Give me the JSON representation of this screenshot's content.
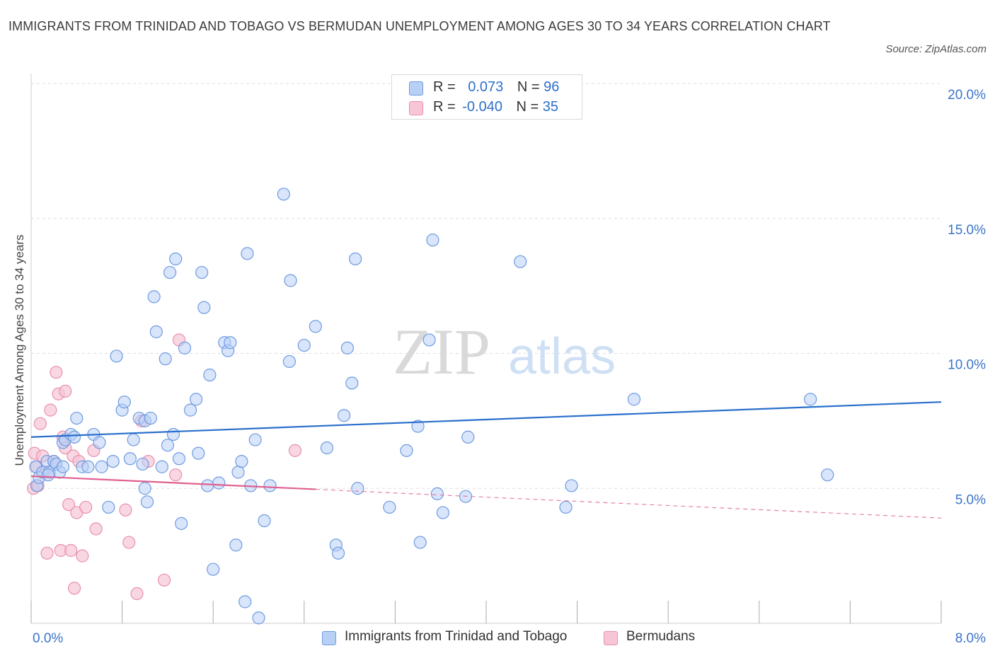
{
  "title": "IMMIGRANTS FROM TRINIDAD AND TOBAGO VS BERMUDAN UNEMPLOYMENT AMONG AGES 30 TO 34 YEARS CORRELATION CHART",
  "source": "Source: ZipAtlas.com",
  "watermark": {
    "zip": "ZIP",
    "atlas": "atlas"
  },
  "colors": {
    "blue_fill": "#b8d0f5",
    "blue_stroke": "#6f9be0",
    "blue_line": "#2a6fcc",
    "pink_fill": "#f7c6d6",
    "pink_stroke": "#e890ad",
    "pink_line": "#e06090",
    "axis_text": "#3a74c9",
    "grid": "#dddddd"
  },
  "legend": {
    "series1": {
      "r_label": "R =",
      "r_value": " 0.073",
      "n_label": "N =",
      "n_value": "96"
    },
    "series2": {
      "r_label": "R =",
      "r_value": "-0.040",
      "n_label": "N =",
      "n_value": "35"
    }
  },
  "chart_data": {
    "type": "scatter",
    "title": "IMMIGRANTS FROM TRINIDAD AND TOBAGO VS BERMUDAN UNEMPLOYMENT AMONG AGES 30 TO 34 YEARS CORRELATION CHART",
    "xlabel": "",
    "ylabel": "Unemployment Among Ages 30 to 34 years",
    "xlim": [
      0,
      8
    ],
    "ylim": [
      0,
      20
    ],
    "x_tick_labels": [
      "0.0%",
      "8.0%"
    ],
    "y_ticks": [
      5,
      10,
      15,
      20
    ],
    "y_tick_labels": [
      "5.0%",
      "10.0%",
      "15.0%",
      "20.0%"
    ],
    "grid": true,
    "legend_position": "top-center",
    "series": [
      {
        "name": "Immigrants from Trinidad and Tobago",
        "trend": {
          "x": [
            0,
            8
          ],
          "y": [
            6.9,
            8.2
          ],
          "solid_until": 8
        },
        "points": [
          [
            0.04,
            5.8
          ],
          [
            0.05,
            5.1
          ],
          [
            0.07,
            5.4
          ],
          [
            0.1,
            5.6
          ],
          [
            0.14,
            6.0
          ],
          [
            0.16,
            5.6
          ],
          [
            0.2,
            6.0
          ],
          [
            0.22,
            5.9
          ],
          [
            0.25,
            5.6
          ],
          [
            0.28,
            5.8
          ],
          [
            0.28,
            6.7
          ],
          [
            0.3,
            6.8
          ],
          [
            0.35,
            7.0
          ],
          [
            0.38,
            6.9
          ],
          [
            0.4,
            7.6
          ],
          [
            0.45,
            5.8
          ],
          [
            0.5,
            5.8
          ],
          [
            0.55,
            7.0
          ],
          [
            0.6,
            6.7
          ],
          [
            0.62,
            5.8
          ],
          [
            0.68,
            4.3
          ],
          [
            0.72,
            6.0
          ],
          [
            0.75,
            9.9
          ],
          [
            0.8,
            7.9
          ],
          [
            0.82,
            8.2
          ],
          [
            0.87,
            6.1
          ],
          [
            0.9,
            6.8
          ],
          [
            0.95,
            7.6
          ],
          [
            0.98,
            5.9
          ],
          [
            1.0,
            7.5
          ],
          [
            1.0,
            5.0
          ],
          [
            1.02,
            4.5
          ],
          [
            1.05,
            7.6
          ],
          [
            1.08,
            12.1
          ],
          [
            1.1,
            10.8
          ],
          [
            1.15,
            5.8
          ],
          [
            1.18,
            9.8
          ],
          [
            1.2,
            6.6
          ],
          [
            1.22,
            13.0
          ],
          [
            1.25,
            7.0
          ],
          [
            1.27,
            13.5
          ],
          [
            1.3,
            6.1
          ],
          [
            1.32,
            3.7
          ],
          [
            1.35,
            10.2
          ],
          [
            1.4,
            7.9
          ],
          [
            1.45,
            8.3
          ],
          [
            1.47,
            6.3
          ],
          [
            1.5,
            13.0
          ],
          [
            1.52,
            11.7
          ],
          [
            1.55,
            5.1
          ],
          [
            1.57,
            9.2
          ],
          [
            1.6,
            2.0
          ],
          [
            1.65,
            5.2
          ],
          [
            1.7,
            10.4
          ],
          [
            1.73,
            10.1
          ],
          [
            1.75,
            10.4
          ],
          [
            1.8,
            2.9
          ],
          [
            1.82,
            5.6
          ],
          [
            1.85,
            6.0
          ],
          [
            1.88,
            0.8
          ],
          [
            1.9,
            13.7
          ],
          [
            1.93,
            5.1
          ],
          [
            1.97,
            6.8
          ],
          [
            2.0,
            0.2
          ],
          [
            2.05,
            3.8
          ],
          [
            2.1,
            5.1
          ],
          [
            2.22,
            15.9
          ],
          [
            2.27,
            9.7
          ],
          [
            2.28,
            12.7
          ],
          [
            2.4,
            10.3
          ],
          [
            2.5,
            11.0
          ],
          [
            2.6,
            6.5
          ],
          [
            2.68,
            2.9
          ],
          [
            2.7,
            2.6
          ],
          [
            2.75,
            7.7
          ],
          [
            2.78,
            10.2
          ],
          [
            2.82,
            8.9
          ],
          [
            2.85,
            13.5
          ],
          [
            2.87,
            5.0
          ],
          [
            3.15,
            4.3
          ],
          [
            3.3,
            6.4
          ],
          [
            3.4,
            7.3
          ],
          [
            3.42,
            3.0
          ],
          [
            3.53,
            14.2
          ],
          [
            3.57,
            4.8
          ],
          [
            3.62,
            4.1
          ],
          [
            3.82,
            4.7
          ],
          [
            3.84,
            6.9
          ],
          [
            4.3,
            13.4
          ],
          [
            4.7,
            4.3
          ],
          [
            4.75,
            5.1
          ],
          [
            5.3,
            8.3
          ],
          [
            6.85,
            8.3
          ],
          [
            7.0,
            5.5
          ],
          [
            3.5,
            10.5
          ],
          [
            0.15,
            5.5
          ]
        ]
      },
      {
        "name": "Bermudans",
        "trend": {
          "x": [
            0,
            8
          ],
          "y": [
            5.45,
            3.9
          ],
          "solid_until": 2.5
        },
        "points": [
          [
            0.02,
            5.0
          ],
          [
            0.03,
            6.3
          ],
          [
            0.05,
            5.8
          ],
          [
            0.08,
            7.4
          ],
          [
            0.1,
            6.2
          ],
          [
            0.12,
            5.6
          ],
          [
            0.14,
            2.6
          ],
          [
            0.17,
            7.9
          ],
          [
            0.2,
            6.0
          ],
          [
            0.22,
            9.3
          ],
          [
            0.24,
            8.5
          ],
          [
            0.26,
            2.7
          ],
          [
            0.28,
            6.9
          ],
          [
            0.3,
            6.5
          ],
          [
            0.3,
            8.6
          ],
          [
            0.33,
            4.4
          ],
          [
            0.35,
            2.7
          ],
          [
            0.37,
            6.2
          ],
          [
            0.38,
            1.3
          ],
          [
            0.4,
            4.1
          ],
          [
            0.42,
            6.0
          ],
          [
            0.45,
            2.5
          ],
          [
            0.48,
            4.3
          ],
          [
            0.55,
            6.4
          ],
          [
            0.57,
            3.5
          ],
          [
            0.83,
            4.2
          ],
          [
            0.86,
            3.0
          ],
          [
            0.93,
            1.1
          ],
          [
            0.97,
            7.5
          ],
          [
            1.03,
            6.0
          ],
          [
            1.17,
            1.6
          ],
          [
            1.27,
            5.5
          ],
          [
            1.3,
            10.5
          ],
          [
            2.32,
            6.4
          ],
          [
            0.06,
            5.1
          ]
        ]
      }
    ]
  },
  "bottom_legend": {
    "item1": "Immigrants from Trinidad and Tobago",
    "item2": "Bermudans"
  }
}
